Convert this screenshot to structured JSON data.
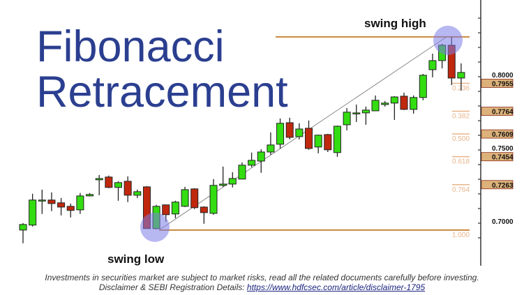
{
  "chart_data": {
    "type": "candlestick",
    "title": "Fibonacci Retracement",
    "annotations": {
      "swing_high": "swing high",
      "swing_low": "swing low"
    },
    "ylim": [
      0.685,
      0.838
    ],
    "y_ticks": [
      {
        "value": 0.8,
        "label": "0.8000"
      },
      {
        "value": 0.75,
        "label": "0.7500"
      },
      {
        "value": 0.7,
        "label": "0.7000"
      }
    ],
    "grid": false,
    "swing": {
      "high": 0.8272,
      "low": 0.6953
    },
    "fib_levels": [
      {
        "ratio": "0.236",
        "price": "0.7955",
        "value": 0.7955
      },
      {
        "ratio": "0.382",
        "price": "0.7764",
        "value": 0.7764
      },
      {
        "ratio": "0.500",
        "price": "0.7609",
        "value": 0.7609
      },
      {
        "ratio": "0.618",
        "price": "0.7454",
        "value": 0.7454
      },
      {
        "ratio": "0.764",
        "price": "0.7263",
        "value": 0.7263
      },
      {
        "ratio": "1.000",
        "price": "",
        "value": 0.6953
      }
    ],
    "colors": {
      "up": "#33dd11",
      "down": "#c0280e",
      "fib_line": "#c8873a",
      "fib_box": "#ddb27a",
      "circle": "#7b7be6",
      "trend_line": "#888888",
      "title": "#2b3f90"
    },
    "candles": [
      [
        0.6953,
        0.7001,
        0.6863,
        0.6991
      ],
      [
        0.6987,
        0.7201,
        0.6977,
        0.7158
      ],
      [
        0.7158,
        0.7229,
        0.7063,
        0.7158
      ],
      [
        0.7158,
        0.721,
        0.7082,
        0.7134
      ],
      [
        0.7139,
        0.7172,
        0.7053,
        0.711
      ],
      [
        0.7115,
        0.7134,
        0.7039,
        0.7087
      ],
      [
        0.7091,
        0.7206,
        0.7063,
        0.7186
      ],
      [
        0.7186,
        0.7206,
        0.7182,
        0.7196
      ],
      [
        0.7296,
        0.7329,
        0.7191,
        0.7305
      ],
      [
        0.7315,
        0.7325,
        0.7239,
        0.7244
      ],
      [
        0.7244,
        0.7286,
        0.7153,
        0.7277
      ],
      [
        0.7286,
        0.732,
        0.7144,
        0.7191
      ],
      [
        0.7191,
        0.7229,
        0.7172,
        0.7215
      ],
      [
        0.7248,
        0.7253,
        0.6963,
        0.6963
      ],
      [
        0.6963,
        0.7125,
        0.6958,
        0.7115
      ],
      [
        0.7125,
        0.7125,
        0.701,
        0.7058
      ],
      [
        0.7063,
        0.7153,
        0.7034,
        0.7144
      ],
      [
        0.7115,
        0.7248,
        0.711,
        0.7229
      ],
      [
        0.7234,
        0.7239,
        0.7096,
        0.7106
      ],
      [
        0.711,
        0.7115,
        0.6996,
        0.7072
      ],
      [
        0.7067,
        0.7301,
        0.7058,
        0.7258
      ],
      [
        0.7258,
        0.7386,
        0.7248,
        0.7267
      ],
      [
        0.7267,
        0.7348,
        0.7244,
        0.7305
      ],
      [
        0.7301,
        0.7415,
        0.7301,
        0.7396
      ],
      [
        0.7396,
        0.7482,
        0.7382,
        0.7429
      ],
      [
        0.7424,
        0.7505,
        0.7344,
        0.7486
      ],
      [
        0.7486,
        0.762,
        0.7467,
        0.7534
      ],
      [
        0.7539,
        0.7715,
        0.751,
        0.7682
      ],
      [
        0.7686,
        0.772,
        0.7572,
        0.7586
      ],
      [
        0.7591,
        0.7682,
        0.7572,
        0.7643
      ],
      [
        0.7648,
        0.7701,
        0.7501,
        0.751
      ],
      [
        0.752,
        0.7605,
        0.7477,
        0.7601
      ],
      [
        0.7605,
        0.761,
        0.7486,
        0.7501
      ],
      [
        0.7482,
        0.7667,
        0.7453,
        0.7662
      ],
      [
        0.7672,
        0.7786,
        0.7634,
        0.7758
      ],
      [
        0.7753,
        0.781,
        0.7691,
        0.7753
      ],
      [
        0.7753,
        0.7796,
        0.7672,
        0.7772
      ],
      [
        0.7767,
        0.7872,
        0.7767,
        0.7839
      ],
      [
        0.781,
        0.7834,
        0.7796,
        0.782
      ],
      [
        0.782,
        0.7867,
        0.7705,
        0.7862
      ],
      [
        0.7867,
        0.7891,
        0.7772,
        0.7777
      ],
      [
        0.7777,
        0.7872,
        0.7748,
        0.7858
      ],
      [
        0.7858,
        0.8019,
        0.7839,
        0.801
      ],
      [
        0.8048,
        0.8157,
        0.7996,
        0.811
      ],
      [
        0.811,
        0.8224,
        0.8057,
        0.8215
      ],
      [
        0.8215,
        0.8272,
        0.7943,
        0.7991
      ],
      [
        0.7991,
        0.8091,
        0.7905,
        0.8029
      ]
    ],
    "candle_fields": [
      "open",
      "high",
      "low",
      "close"
    ]
  },
  "footer": {
    "line1": "Investments in securities market are subject to market risks, read all the related documents carefully before investing.",
    "line2_prefix": "Disclaimer & SEBI Registration Details: ",
    "link": "https://www.hdfcsec.com/article/disclaimer-1795"
  },
  "title_lines": [
    "Fibonacci",
    "Retracement"
  ]
}
